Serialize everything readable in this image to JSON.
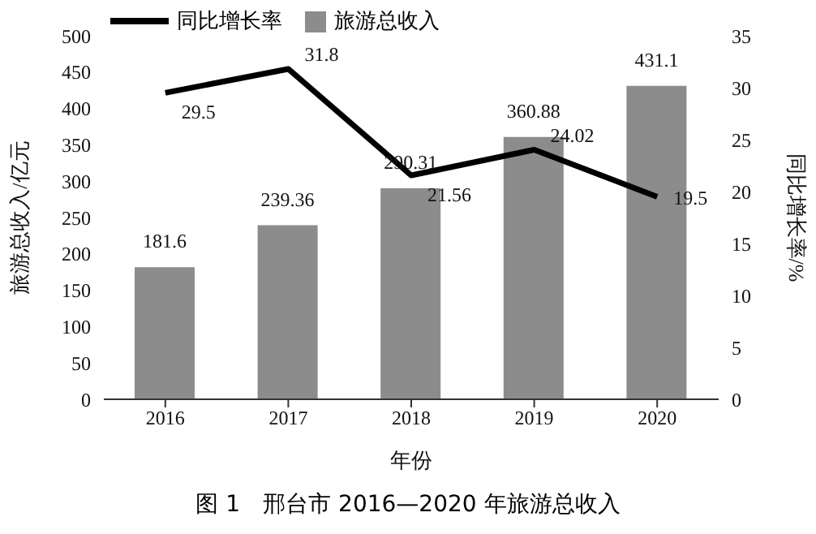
{
  "chart_data": {
    "type": "bar",
    "title": "图 1　邢台市 2016—2020 年旅游总收入",
    "categories": [
      "2016",
      "2017",
      "2018",
      "2019",
      "2020"
    ],
    "series": [
      {
        "name": "同比增长率",
        "type": "line",
        "axis": "y2",
        "color": "#000000",
        "values": [
          29.5,
          31.8,
          21.56,
          24.02,
          19.5
        ]
      },
      {
        "name": "旅游总收入",
        "color": "#8c8c8c",
        "values": [
          181.6,
          239.36,
          290.31,
          360.88,
          431.1
        ]
      }
    ],
    "xlabel": "年份",
    "ylabel": "旅游总收入/亿元",
    "y2label": "同比增长率/%",
    "ylim": [
      0,
      500
    ],
    "yticks": [
      0,
      50,
      100,
      150,
      200,
      250,
      300,
      350,
      400,
      450,
      500
    ],
    "y2lim": [
      0,
      35
    ],
    "y2ticks": [
      0,
      5,
      10,
      15,
      20,
      25,
      30,
      35
    ],
    "data_labels": true,
    "legend": "top",
    "grid": false,
    "marker": "none"
  }
}
